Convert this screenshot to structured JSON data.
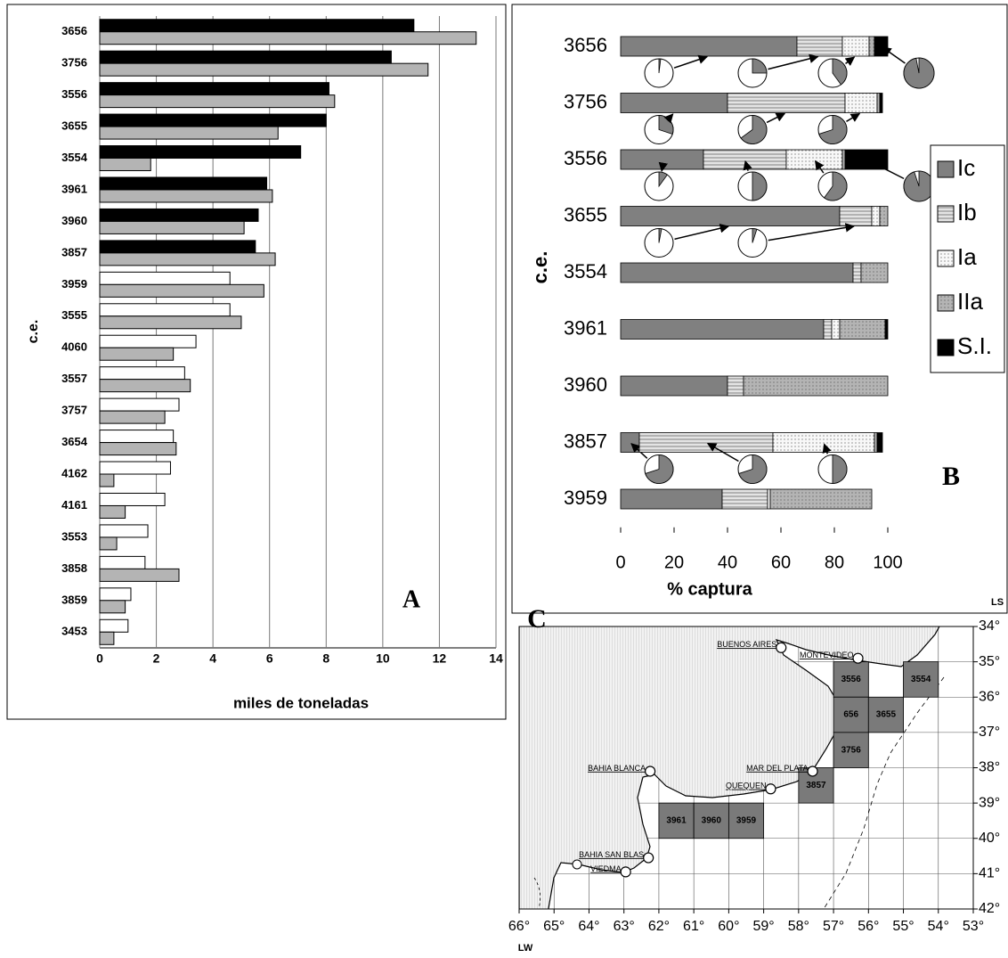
{
  "chart_data": [
    {
      "type": "bar",
      "horizontal": true,
      "stacked": false,
      "label": "A",
      "xlabel": "miles de toneladas",
      "ylabel": "c.e.",
      "categories": [
        "3656",
        "3756",
        "3556",
        "3655",
        "3554",
        "3961",
        "3960",
        "3857",
        "3959",
        "3555",
        "4060",
        "3557",
        "3757",
        "3654",
        "4162",
        "4161",
        "3553",
        "3858",
        "3859",
        "3453"
      ],
      "series": [
        {
          "colors": [
            "#000000",
            "#000000",
            "#000000",
            "#000000",
            "#000000",
            "#000000",
            "#000000",
            "#000000",
            "#ffffff",
            "#ffffff",
            "#ffffff",
            "#ffffff",
            "#ffffff",
            "#ffffff",
            "#ffffff",
            "#ffffff",
            "#ffffff",
            "#ffffff",
            "#ffffff",
            "#ffffff"
          ],
          "values": [
            11.1,
            10.3,
            8.1,
            8.0,
            7.1,
            5.9,
            5.6,
            5.5,
            4.6,
            4.6,
            3.4,
            3.0,
            2.8,
            2.6,
            2.5,
            2.3,
            1.7,
            1.6,
            1.1,
            1.0
          ]
        },
        {
          "color": "#b4b4b4",
          "values": [
            13.3,
            11.6,
            8.3,
            6.3,
            1.8,
            6.1,
            5.1,
            6.2,
            5.8,
            5.0,
            2.6,
            3.2,
            2.3,
            2.7,
            0.5,
            0.9,
            0.6,
            2.8,
            0.9,
            0.5
          ]
        }
      ],
      "xlim": [
        0,
        14
      ],
      "xticks": [
        0,
        2,
        4,
        6,
        8,
        10,
        12,
        14
      ],
      "grid": true
    },
    {
      "type": "bar",
      "horizontal": true,
      "stacked": true,
      "label": "B",
      "xlabel": "% captura",
      "ylabel": "c.e.",
      "legend": "right",
      "categories": [
        "3656",
        "3756",
        "3556",
        "3655",
        "3554",
        "3961",
        "3960",
        "3857",
        "3959"
      ],
      "series": [
        {
          "name": "Ic",
          "color": "#808080",
          "pattern": "solid",
          "values": [
            66,
            40,
            31,
            82,
            87,
            76,
            40,
            7,
            38
          ],
          "pie_values": [
            2,
            30,
            10,
            3,
            null,
            null,
            null,
            70,
            null
          ]
        },
        {
          "name": "Ib",
          "color": "#e4e4e4",
          "pattern": "hatch",
          "values": [
            17,
            44,
            31,
            12,
            3,
            3,
            6,
            50,
            17
          ],
          "pie_values": [
            25,
            65,
            50,
            5,
            null,
            null,
            null,
            70,
            null
          ]
        },
        {
          "name": "Ia",
          "color": "#f8f8f8",
          "pattern": "dots",
          "values": [
            10,
            12,
            21,
            3,
            0,
            3,
            0,
            38,
            1
          ],
          "pie_values": [
            40,
            70,
            60,
            null,
            null,
            null,
            null,
            50,
            null
          ]
        },
        {
          "name": "IIa",
          "color": "#b4b4b4",
          "pattern": "dots",
          "values": [
            2,
            1,
            1,
            3,
            10,
            17,
            54,
            1,
            38
          ]
        },
        {
          "name": "S.I.",
          "color": "#000000",
          "pattern": "solid",
          "values": [
            5,
            1,
            16,
            0,
            0,
            1,
            0,
            2,
            0
          ],
          "pie_values": [
            97,
            null,
            95,
            null,
            null,
            null,
            null,
            null,
            null
          ]
        }
      ],
      "xlim": [
        0,
        100
      ],
      "xticks": [
        0,
        20,
        40,
        60,
        80,
        100
      ],
      "grid": false
    },
    {
      "type": "map",
      "label": "C",
      "xlabel": "LW",
      "ylabel": "LS",
      "xlim": [
        -66,
        -53
      ],
      "xticks": [
        {
          "value": -66,
          "label": "66°"
        },
        {
          "value": -65,
          "label": "65°"
        },
        {
          "value": -64,
          "label": "64°"
        },
        {
          "value": -63,
          "label": "63°"
        },
        {
          "value": -62,
          "label": "62°"
        },
        {
          "value": -61,
          "label": "61°"
        },
        {
          "value": -60,
          "label": "60°"
        },
        {
          "value": -59,
          "label": "59°"
        },
        {
          "value": -58,
          "label": "58°"
        },
        {
          "value": -57,
          "label": "57°"
        },
        {
          "value": -56,
          "label": "56°"
        },
        {
          "value": -55,
          "label": "55°"
        },
        {
          "value": -54,
          "label": "54°"
        },
        {
          "value": -53,
          "label": "53°"
        }
      ],
      "ylim": [
        -42,
        -34
      ],
      "yticks": [
        {
          "value": -34,
          "label": "34°"
        },
        {
          "value": -35,
          "label": "35°"
        },
        {
          "value": -36,
          "label": "36°"
        },
        {
          "value": -37,
          "label": "37°"
        },
        {
          "value": -38,
          "label": "38°"
        },
        {
          "value": -39,
          "label": "39°"
        },
        {
          "value": -40,
          "label": "40°"
        },
        {
          "value": -41,
          "label": "41°"
        },
        {
          "value": -42,
          "label": "42°"
        }
      ],
      "grid": true,
      "cells": {
        "color": "#7a7a7a",
        "labels": [
          "3556",
          "3554",
          "656",
          "3655",
          "3756",
          "3857",
          "3961",
          "3960",
          "3959"
        ],
        "x": [
          -56.5,
          -54.5,
          -56.5,
          -55.5,
          -56.5,
          -57.5,
          -61.5,
          -60.5,
          -59.5
        ],
        "y": [
          -35.5,
          -35.5,
          -36.5,
          -36.5,
          -37.5,
          -38.5,
          -39.5,
          -39.5,
          -39.5
        ]
      },
      "places": {
        "labels": [
          "BUENOS AIRES",
          "MONTEVIDEO",
          "MAR DEL PLATA",
          "QUEQUEN",
          "BAHIA BLANCA",
          "BAHIA SAN BLAS",
          "VIEDMA"
        ],
        "x": [
          -58.5,
          -56.3,
          -57.6,
          -58.8,
          -62.25,
          -62.3,
          -62.95
        ],
        "y": [
          -34.6,
          -34.9,
          -38.1,
          -38.6,
          -38.1,
          -40.55,
          -40.95
        ]
      }
    }
  ]
}
